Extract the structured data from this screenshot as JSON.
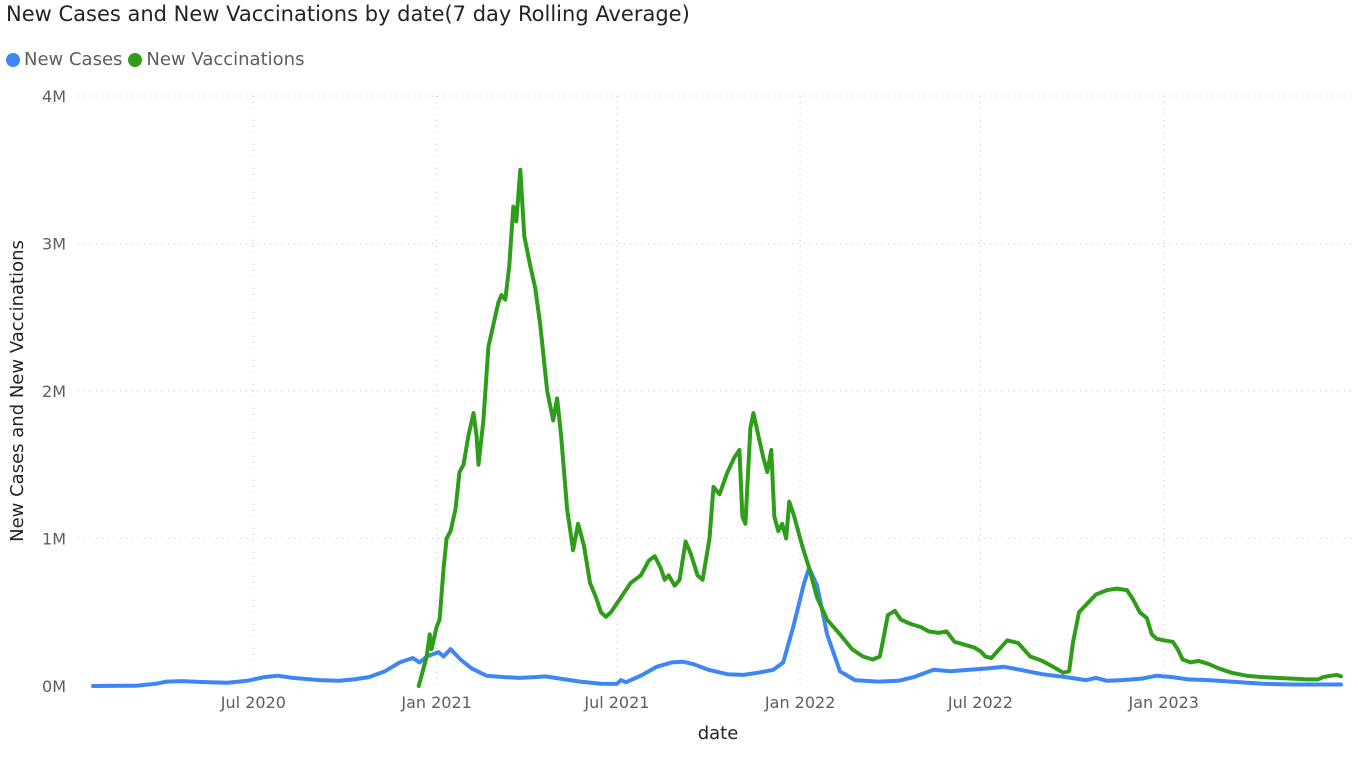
{
  "chart_data": {
    "type": "line",
    "title": "New Cases and New Vaccinations by date(7 day Rolling Average)",
    "xlabel": "date",
    "ylabel": "New Cases and New Vaccinations",
    "ylim": [
      0,
      4000000
    ],
    "y_ticks": [
      {
        "value": 0,
        "label": "0M"
      },
      {
        "value": 1000000,
        "label": "1M"
      },
      {
        "value": 2000000,
        "label": "2M"
      },
      {
        "value": 3000000,
        "label": "3M"
      },
      {
        "value": 4000000,
        "label": "4M"
      }
    ],
    "xlim": [
      "2020-01-22",
      "2023-06-28"
    ],
    "x_ticks": [
      {
        "value": "2020-07-01",
        "label": "Jul 2020"
      },
      {
        "value": "2021-01-01",
        "label": "Jan 2021"
      },
      {
        "value": "2021-07-01",
        "label": "Jul 2021"
      },
      {
        "value": "2022-01-01",
        "label": "Jan 2022"
      },
      {
        "value": "2022-07-01",
        "label": "Jul 2022"
      },
      {
        "value": "2023-01-01",
        "label": "Jan 2023"
      }
    ],
    "grid": true,
    "legend_position": "top-left",
    "series": [
      {
        "name": "New Cases",
        "color": "#3E86F5",
        "points": [
          [
            "2020-01-22",
            0
          ],
          [
            "2020-03-05",
            2000
          ],
          [
            "2020-03-25",
            15000
          ],
          [
            "2020-04-05",
            30000
          ],
          [
            "2020-04-20",
            33000
          ],
          [
            "2020-05-10",
            27000
          ],
          [
            "2020-06-05",
            22000
          ],
          [
            "2020-06-25",
            35000
          ],
          [
            "2020-07-12",
            60000
          ],
          [
            "2020-07-25",
            70000
          ],
          [
            "2020-08-10",
            55000
          ],
          [
            "2020-09-05",
            40000
          ],
          [
            "2020-09-25",
            35000
          ],
          [
            "2020-10-10",
            45000
          ],
          [
            "2020-10-25",
            60000
          ],
          [
            "2020-11-10",
            100000
          ],
          [
            "2020-11-25",
            160000
          ],
          [
            "2020-12-08",
            190000
          ],
          [
            "2020-12-15",
            160000
          ],
          [
            "2020-12-22",
            200000
          ],
          [
            "2021-01-03",
            230000
          ],
          [
            "2021-01-08",
            200000
          ],
          [
            "2021-01-15",
            250000
          ],
          [
            "2021-01-25",
            180000
          ],
          [
            "2021-02-05",
            120000
          ],
          [
            "2021-02-20",
            70000
          ],
          [
            "2021-03-10",
            60000
          ],
          [
            "2021-03-25",
            55000
          ],
          [
            "2021-04-10",
            60000
          ],
          [
            "2021-04-20",
            65000
          ],
          [
            "2021-05-05",
            50000
          ],
          [
            "2021-05-25",
            30000
          ],
          [
            "2021-06-15",
            15000
          ],
          [
            "2021-07-01",
            14000
          ],
          [
            "2021-07-05",
            40000
          ],
          [
            "2021-07-10",
            25000
          ],
          [
            "2021-07-25",
            70000
          ],
          [
            "2021-08-10",
            130000
          ],
          [
            "2021-08-25",
            160000
          ],
          [
            "2021-09-05",
            165000
          ],
          [
            "2021-09-15",
            150000
          ],
          [
            "2021-10-01",
            110000
          ],
          [
            "2021-10-20",
            80000
          ],
          [
            "2021-11-05",
            75000
          ],
          [
            "2021-11-20",
            90000
          ],
          [
            "2021-12-05",
            110000
          ],
          [
            "2021-12-15",
            160000
          ],
          [
            "2021-12-25",
            400000
          ],
          [
            "2022-01-05",
            700000
          ],
          [
            "2022-01-10",
            800000
          ],
          [
            "2022-01-18",
            680000
          ],
          [
            "2022-01-28",
            350000
          ],
          [
            "2022-02-10",
            100000
          ],
          [
            "2022-02-25",
            40000
          ],
          [
            "2022-03-20",
            30000
          ],
          [
            "2022-04-10",
            35000
          ],
          [
            "2022-04-25",
            60000
          ],
          [
            "2022-05-15",
            110000
          ],
          [
            "2022-06-01",
            100000
          ],
          [
            "2022-06-20",
            110000
          ],
          [
            "2022-07-10",
            120000
          ],
          [
            "2022-07-25",
            130000
          ],
          [
            "2022-08-10",
            110000
          ],
          [
            "2022-09-01",
            80000
          ],
          [
            "2022-09-25",
            60000
          ],
          [
            "2022-10-15",
            40000
          ],
          [
            "2022-10-25",
            55000
          ],
          [
            "2022-11-05",
            35000
          ],
          [
            "2022-11-20",
            40000
          ],
          [
            "2022-12-10",
            50000
          ],
          [
            "2022-12-25",
            70000
          ],
          [
            "2023-01-10",
            60000
          ],
          [
            "2023-01-25",
            45000
          ],
          [
            "2023-02-15",
            40000
          ],
          [
            "2023-03-10",
            30000
          ],
          [
            "2023-04-10",
            15000
          ],
          [
            "2023-05-10",
            10000
          ],
          [
            "2023-06-28",
            10000
          ]
        ]
      },
      {
        "name": "New Vaccinations",
        "color": "#2E9E1A",
        "points": [
          [
            "2020-12-14",
            0
          ],
          [
            "2020-12-18",
            100000
          ],
          [
            "2020-12-22",
            200000
          ],
          [
            "2020-12-25",
            350000
          ],
          [
            "2020-12-27",
            250000
          ],
          [
            "2021-01-01",
            400000
          ],
          [
            "2021-01-04",
            450000
          ],
          [
            "2021-01-08",
            800000
          ],
          [
            "2021-01-11",
            1000000
          ],
          [
            "2021-01-15",
            1050000
          ],
          [
            "2021-01-20",
            1200000
          ],
          [
            "2021-01-24",
            1450000
          ],
          [
            "2021-01-28",
            1500000
          ],
          [
            "2021-02-02",
            1700000
          ],
          [
            "2021-02-07",
            1850000
          ],
          [
            "2021-02-10",
            1700000
          ],
          [
            "2021-02-12",
            1500000
          ],
          [
            "2021-02-17",
            1800000
          ],
          [
            "2021-02-22",
            2300000
          ],
          [
            "2021-02-27",
            2450000
          ],
          [
            "2021-03-04",
            2600000
          ],
          [
            "2021-03-07",
            2650000
          ],
          [
            "2021-03-11",
            2620000
          ],
          [
            "2021-03-15",
            2850000
          ],
          [
            "2021-03-19",
            3250000
          ],
          [
            "2021-03-22",
            3150000
          ],
          [
            "2021-03-26",
            3500000
          ],
          [
            "2021-03-30",
            3050000
          ],
          [
            "2021-04-05",
            2850000
          ],
          [
            "2021-04-10",
            2700000
          ],
          [
            "2021-04-15",
            2450000
          ],
          [
            "2021-04-22",
            2000000
          ],
          [
            "2021-04-28",
            1800000
          ],
          [
            "2021-05-02",
            1950000
          ],
          [
            "2021-05-06",
            1700000
          ],
          [
            "2021-05-12",
            1200000
          ],
          [
            "2021-05-18",
            920000
          ],
          [
            "2021-05-23",
            1100000
          ],
          [
            "2021-05-29",
            950000
          ],
          [
            "2021-06-04",
            700000
          ],
          [
            "2021-06-10",
            600000
          ],
          [
            "2021-06-15",
            500000
          ],
          [
            "2021-06-20",
            470000
          ],
          [
            "2021-06-25",
            500000
          ],
          [
            "2021-07-05",
            600000
          ],
          [
            "2021-07-15",
            700000
          ],
          [
            "2021-07-25",
            750000
          ],
          [
            "2021-08-02",
            850000
          ],
          [
            "2021-08-08",
            880000
          ],
          [
            "2021-08-14",
            800000
          ],
          [
            "2021-08-18",
            720000
          ],
          [
            "2021-08-22",
            750000
          ],
          [
            "2021-08-28",
            680000
          ],
          [
            "2021-09-02",
            720000
          ],
          [
            "2021-09-08",
            980000
          ],
          [
            "2021-09-13",
            900000
          ],
          [
            "2021-09-20",
            750000
          ],
          [
            "2021-09-25",
            720000
          ],
          [
            "2021-10-02",
            1000000
          ],
          [
            "2021-10-06",
            1350000
          ],
          [
            "2021-10-12",
            1300000
          ],
          [
            "2021-10-20",
            1450000
          ],
          [
            "2021-10-27",
            1550000
          ],
          [
            "2021-11-01",
            1600000
          ],
          [
            "2021-11-04",
            1150000
          ],
          [
            "2021-11-07",
            1100000
          ],
          [
            "2021-11-12",
            1750000
          ],
          [
            "2021-11-15",
            1850000
          ],
          [
            "2021-11-20",
            1700000
          ],
          [
            "2021-11-25",
            1550000
          ],
          [
            "2021-11-29",
            1450000
          ],
          [
            "2021-12-03",
            1600000
          ],
          [
            "2021-12-06",
            1150000
          ],
          [
            "2021-12-10",
            1050000
          ],
          [
            "2021-12-14",
            1100000
          ],
          [
            "2021-12-18",
            1000000
          ],
          [
            "2021-12-21",
            1250000
          ],
          [
            "2021-12-26",
            1150000
          ],
          [
            "2022-01-03",
            950000
          ],
          [
            "2022-01-10",
            800000
          ],
          [
            "2022-01-18",
            600000
          ],
          [
            "2022-01-28",
            450000
          ],
          [
            "2022-02-10",
            350000
          ],
          [
            "2022-02-22",
            250000
          ],
          [
            "2022-03-05",
            200000
          ],
          [
            "2022-03-15",
            180000
          ],
          [
            "2022-03-22",
            200000
          ],
          [
            "2022-03-25",
            300000
          ],
          [
            "2022-03-30",
            480000
          ],
          [
            "2022-04-06",
            510000
          ],
          [
            "2022-04-12",
            450000
          ],
          [
            "2022-04-22",
            420000
          ],
          [
            "2022-05-02",
            400000
          ],
          [
            "2022-05-10",
            370000
          ],
          [
            "2022-05-20",
            360000
          ],
          [
            "2022-05-28",
            370000
          ],
          [
            "2022-06-05",
            300000
          ],
          [
            "2022-06-15",
            280000
          ],
          [
            "2022-06-25",
            260000
          ],
          [
            "2022-07-02",
            230000
          ],
          [
            "2022-07-06",
            200000
          ],
          [
            "2022-07-12",
            190000
          ],
          [
            "2022-07-20",
            250000
          ],
          [
            "2022-07-28",
            310000
          ],
          [
            "2022-08-08",
            290000
          ],
          [
            "2022-08-20",
            200000
          ],
          [
            "2022-09-01",
            170000
          ],
          [
            "2022-09-12",
            130000
          ],
          [
            "2022-09-22",
            90000
          ],
          [
            "2022-09-28",
            100000
          ],
          [
            "2022-10-02",
            300000
          ],
          [
            "2022-10-08",
            500000
          ],
          [
            "2022-10-15",
            550000
          ],
          [
            "2022-10-25",
            620000
          ],
          [
            "2022-11-05",
            650000
          ],
          [
            "2022-11-15",
            660000
          ],
          [
            "2022-11-25",
            650000
          ],
          [
            "2022-12-01",
            590000
          ],
          [
            "2022-12-08",
            500000
          ],
          [
            "2022-12-15",
            460000
          ],
          [
            "2022-12-20",
            350000
          ],
          [
            "2022-12-25",
            320000
          ],
          [
            "2023-01-01",
            310000
          ],
          [
            "2023-01-10",
            300000
          ],
          [
            "2023-01-15",
            250000
          ],
          [
            "2023-01-20",
            180000
          ],
          [
            "2023-01-28",
            160000
          ],
          [
            "2023-02-05",
            170000
          ],
          [
            "2023-02-15",
            150000
          ],
          [
            "2023-02-25",
            120000
          ],
          [
            "2023-03-10",
            90000
          ],
          [
            "2023-03-25",
            70000
          ],
          [
            "2023-04-10",
            60000
          ],
          [
            "2023-04-25",
            55000
          ],
          [
            "2023-05-10",
            50000
          ],
          [
            "2023-05-25",
            45000
          ],
          [
            "2023-06-05",
            45000
          ],
          [
            "2023-06-10",
            60000
          ],
          [
            "2023-06-18",
            70000
          ],
          [
            "2023-06-24",
            75000
          ],
          [
            "2023-06-28",
            65000
          ]
        ]
      }
    ]
  }
}
